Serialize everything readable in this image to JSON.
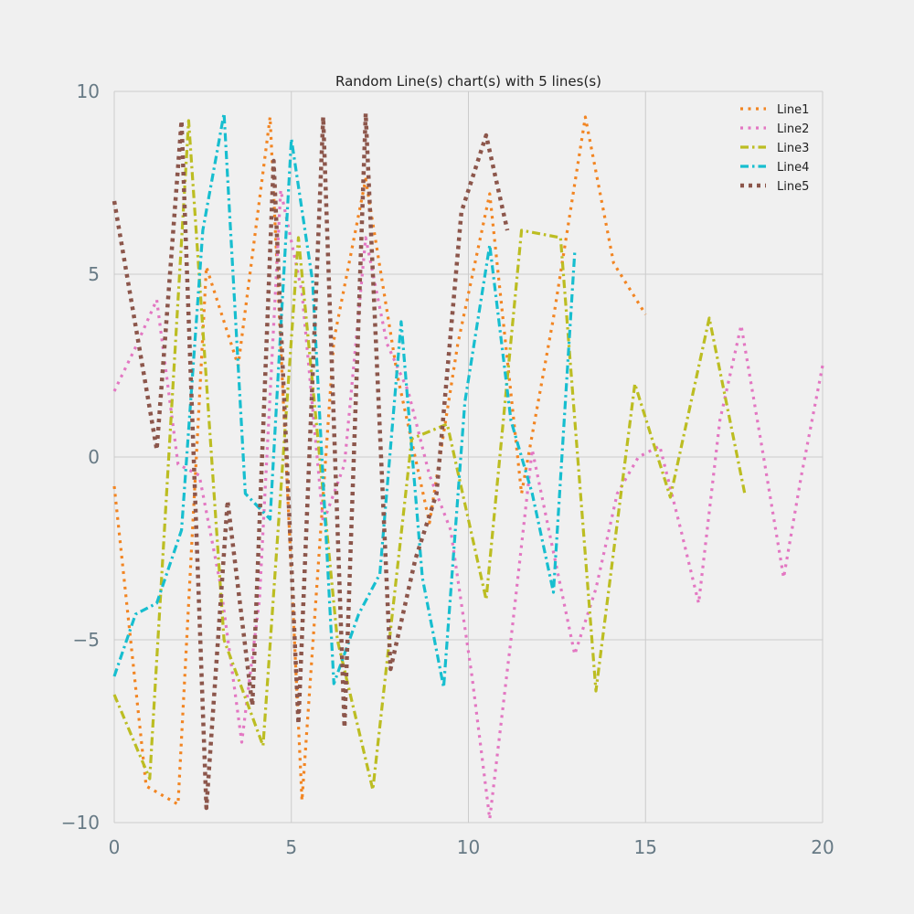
{
  "chart_data": {
    "type": "line",
    "title": "Random Line(s) chart(s) with 5 lines(s)",
    "xlabel": "",
    "ylabel": "",
    "xlim": [
      0,
      20
    ],
    "ylim": [
      -10,
      10
    ],
    "xticks": [
      0,
      5,
      10,
      15,
      20
    ],
    "yticks": [
      -10,
      -5,
      0,
      5,
      10
    ],
    "ytick_labels": [
      "−10",
      "−5",
      "0",
      "5",
      "10"
    ],
    "grid": true,
    "legend_position": "top-right",
    "series": [
      {
        "name": "Line1",
        "color": "#f28522",
        "dash": "dotted",
        "points": [
          [
            0.0,
            -0.8
          ],
          [
            0.9,
            -9.0
          ],
          [
            1.8,
            -9.5
          ],
          [
            2.6,
            5.2
          ],
          [
            3.5,
            2.5
          ],
          [
            4.4,
            9.3
          ],
          [
            5.3,
            -9.4
          ],
          [
            6.2,
            3.2
          ],
          [
            7.1,
            7.6
          ],
          [
            8.0,
            2.2
          ],
          [
            8.9,
            -1.8
          ],
          [
            9.7,
            3.1
          ],
          [
            10.6,
            7.2
          ],
          [
            11.5,
            -1.0
          ],
          [
            12.4,
            3.8
          ],
          [
            13.3,
            9.3
          ],
          [
            14.1,
            5.3
          ],
          [
            15.0,
            3.9
          ]
        ]
      },
      {
        "name": "Line2",
        "color": "#e377c2",
        "dash": "dotted",
        "points": [
          [
            0.0,
            1.8
          ],
          [
            0.6,
            3.0
          ],
          [
            1.2,
            4.3
          ],
          [
            1.8,
            -0.2
          ],
          [
            2.4,
            -0.5
          ],
          [
            3.0,
            -3.5
          ],
          [
            3.6,
            -7.8
          ],
          [
            4.1,
            -3.9
          ],
          [
            4.7,
            7.3
          ],
          [
            5.3,
            4.5
          ],
          [
            5.9,
            -1.8
          ],
          [
            6.5,
            -0.2
          ],
          [
            7.1,
            6.0
          ],
          [
            7.7,
            3.1
          ],
          [
            8.3,
            1.8
          ],
          [
            8.9,
            -0.5
          ],
          [
            9.5,
            -2.0
          ],
          [
            10.1,
            -6.0
          ],
          [
            10.6,
            -9.9
          ],
          [
            11.2,
            -5.0
          ],
          [
            11.8,
            0.2
          ],
          [
            12.4,
            -2.6
          ],
          [
            13.0,
            -5.4
          ],
          [
            13.6,
            -3.6
          ],
          [
            14.2,
            -1.0
          ],
          [
            14.8,
            0.0
          ],
          [
            15.4,
            0.3
          ],
          [
            16.0,
            -2.0
          ],
          [
            16.5,
            -4.0
          ],
          [
            17.1,
            1.0
          ],
          [
            17.7,
            3.6
          ],
          [
            18.3,
            0.2
          ],
          [
            18.9,
            -3.3
          ],
          [
            19.4,
            -0.5
          ],
          [
            20.0,
            2.5
          ]
        ]
      },
      {
        "name": "Line3",
        "color": "#bcbd22",
        "dash": "dashdot",
        "points": [
          [
            0.0,
            -6.5
          ],
          [
            1.0,
            -8.8
          ],
          [
            2.1,
            9.2
          ],
          [
            3.1,
            -5.0
          ],
          [
            4.2,
            -7.9
          ],
          [
            5.2,
            6.0
          ],
          [
            6.3,
            -5.0
          ],
          [
            7.3,
            -9.1
          ],
          [
            8.4,
            0.5
          ],
          [
            9.4,
            0.9
          ],
          [
            10.5,
            -3.9
          ],
          [
            11.5,
            6.2
          ],
          [
            12.6,
            6.0
          ],
          [
            13.6,
            -6.4
          ],
          [
            14.7,
            2.0
          ],
          [
            15.7,
            -1.1
          ],
          [
            16.8,
            3.8
          ],
          [
            17.8,
            -1.0
          ]
        ]
      },
      {
        "name": "Line4",
        "color": "#17becf",
        "dash": "dashdot",
        "points": [
          [
            0.0,
            -6.0
          ],
          [
            0.6,
            -4.3
          ],
          [
            1.2,
            -4.0
          ],
          [
            1.9,
            -2.0
          ],
          [
            2.5,
            6.2
          ],
          [
            3.1,
            9.4
          ],
          [
            3.7,
            -1.0
          ],
          [
            4.4,
            -1.7
          ],
          [
            5.0,
            8.7
          ],
          [
            5.6,
            4.8
          ],
          [
            6.2,
            -6.2
          ],
          [
            6.9,
            -4.3
          ],
          [
            7.5,
            -3.2
          ],
          [
            8.1,
            3.7
          ],
          [
            8.7,
            -3.3
          ],
          [
            9.3,
            -6.3
          ],
          [
            9.9,
            1.5
          ],
          [
            10.6,
            5.8
          ],
          [
            11.2,
            1.0
          ],
          [
            11.8,
            -1.0
          ],
          [
            12.4,
            -3.7
          ],
          [
            13.0,
            5.6
          ]
        ]
      },
      {
        "name": "Line5",
        "color": "#8c564b",
        "dash": "dotted-thick",
        "points": [
          [
            0.0,
            7.0
          ],
          [
            1.2,
            0.2
          ],
          [
            1.9,
            9.2
          ],
          [
            2.6,
            -9.6
          ],
          [
            3.2,
            -1.2
          ],
          [
            3.9,
            -6.8
          ],
          [
            4.5,
            8.1
          ],
          [
            5.2,
            -7.3
          ],
          [
            5.9,
            9.3
          ],
          [
            6.5,
            -7.4
          ],
          [
            7.1,
            9.4
          ],
          [
            7.8,
            -5.8
          ],
          [
            8.5,
            -2.8
          ],
          [
            9.1,
            -1.0
          ],
          [
            9.8,
            6.7
          ],
          [
            10.5,
            8.8
          ],
          [
            11.1,
            6.2
          ]
        ]
      }
    ]
  }
}
